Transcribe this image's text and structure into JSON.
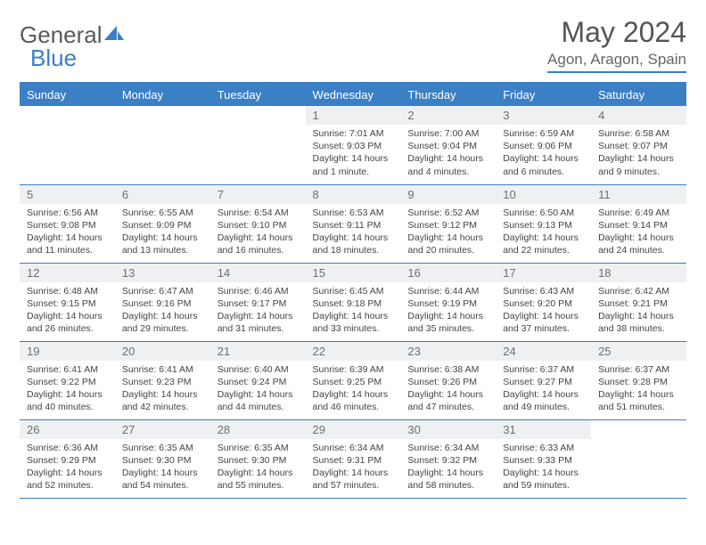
{
  "brand": {
    "part1": "General",
    "part2": "Blue"
  },
  "title": "May 2024",
  "location": "Agon, Aragon, Spain",
  "header_color": "#3b7fc4",
  "daynum_bg": "#eef0f2",
  "days": [
    "Sunday",
    "Monday",
    "Tuesday",
    "Wednesday",
    "Thursday",
    "Friday",
    "Saturday"
  ],
  "weeks": [
    [
      null,
      null,
      null,
      {
        "n": "1",
        "sunrise": "7:01 AM",
        "sunset": "9:03 PM",
        "daylight": "14 hours and 1 minute."
      },
      {
        "n": "2",
        "sunrise": "7:00 AM",
        "sunset": "9:04 PM",
        "daylight": "14 hours and 4 minutes."
      },
      {
        "n": "3",
        "sunrise": "6:59 AM",
        "sunset": "9:06 PM",
        "daylight": "14 hours and 6 minutes."
      },
      {
        "n": "4",
        "sunrise": "6:58 AM",
        "sunset": "9:07 PM",
        "daylight": "14 hours and 9 minutes."
      }
    ],
    [
      {
        "n": "5",
        "sunrise": "6:56 AM",
        "sunset": "9:08 PM",
        "daylight": "14 hours and 11 minutes."
      },
      {
        "n": "6",
        "sunrise": "6:55 AM",
        "sunset": "9:09 PM",
        "daylight": "14 hours and 13 minutes."
      },
      {
        "n": "7",
        "sunrise": "6:54 AM",
        "sunset": "9:10 PM",
        "daylight": "14 hours and 16 minutes."
      },
      {
        "n": "8",
        "sunrise": "6:53 AM",
        "sunset": "9:11 PM",
        "daylight": "14 hours and 18 minutes."
      },
      {
        "n": "9",
        "sunrise": "6:52 AM",
        "sunset": "9:12 PM",
        "daylight": "14 hours and 20 minutes."
      },
      {
        "n": "10",
        "sunrise": "6:50 AM",
        "sunset": "9:13 PM",
        "daylight": "14 hours and 22 minutes."
      },
      {
        "n": "11",
        "sunrise": "6:49 AM",
        "sunset": "9:14 PM",
        "daylight": "14 hours and 24 minutes."
      }
    ],
    [
      {
        "n": "12",
        "sunrise": "6:48 AM",
        "sunset": "9:15 PM",
        "daylight": "14 hours and 26 minutes."
      },
      {
        "n": "13",
        "sunrise": "6:47 AM",
        "sunset": "9:16 PM",
        "daylight": "14 hours and 29 minutes."
      },
      {
        "n": "14",
        "sunrise": "6:46 AM",
        "sunset": "9:17 PM",
        "daylight": "14 hours and 31 minutes."
      },
      {
        "n": "15",
        "sunrise": "6:45 AM",
        "sunset": "9:18 PM",
        "daylight": "14 hours and 33 minutes."
      },
      {
        "n": "16",
        "sunrise": "6:44 AM",
        "sunset": "9:19 PM",
        "daylight": "14 hours and 35 minutes."
      },
      {
        "n": "17",
        "sunrise": "6:43 AM",
        "sunset": "9:20 PM",
        "daylight": "14 hours and 37 minutes."
      },
      {
        "n": "18",
        "sunrise": "6:42 AM",
        "sunset": "9:21 PM",
        "daylight": "14 hours and 38 minutes."
      }
    ],
    [
      {
        "n": "19",
        "sunrise": "6:41 AM",
        "sunset": "9:22 PM",
        "daylight": "14 hours and 40 minutes."
      },
      {
        "n": "20",
        "sunrise": "6:41 AM",
        "sunset": "9:23 PM",
        "daylight": "14 hours and 42 minutes."
      },
      {
        "n": "21",
        "sunrise": "6:40 AM",
        "sunset": "9:24 PM",
        "daylight": "14 hours and 44 minutes."
      },
      {
        "n": "22",
        "sunrise": "6:39 AM",
        "sunset": "9:25 PM",
        "daylight": "14 hours and 46 minutes."
      },
      {
        "n": "23",
        "sunrise": "6:38 AM",
        "sunset": "9:26 PM",
        "daylight": "14 hours and 47 minutes."
      },
      {
        "n": "24",
        "sunrise": "6:37 AM",
        "sunset": "9:27 PM",
        "daylight": "14 hours and 49 minutes."
      },
      {
        "n": "25",
        "sunrise": "6:37 AM",
        "sunset": "9:28 PM",
        "daylight": "14 hours and 51 minutes."
      }
    ],
    [
      {
        "n": "26",
        "sunrise": "6:36 AM",
        "sunset": "9:29 PM",
        "daylight": "14 hours and 52 minutes."
      },
      {
        "n": "27",
        "sunrise": "6:35 AM",
        "sunset": "9:30 PM",
        "daylight": "14 hours and 54 minutes."
      },
      {
        "n": "28",
        "sunrise": "6:35 AM",
        "sunset": "9:30 PM",
        "daylight": "14 hours and 55 minutes."
      },
      {
        "n": "29",
        "sunrise": "6:34 AM",
        "sunset": "9:31 PM",
        "daylight": "14 hours and 57 minutes."
      },
      {
        "n": "30",
        "sunrise": "6:34 AM",
        "sunset": "9:32 PM",
        "daylight": "14 hours and 58 minutes."
      },
      {
        "n": "31",
        "sunrise": "6:33 AM",
        "sunset": "9:33 PM",
        "daylight": "14 hours and 59 minutes."
      },
      null
    ]
  ]
}
